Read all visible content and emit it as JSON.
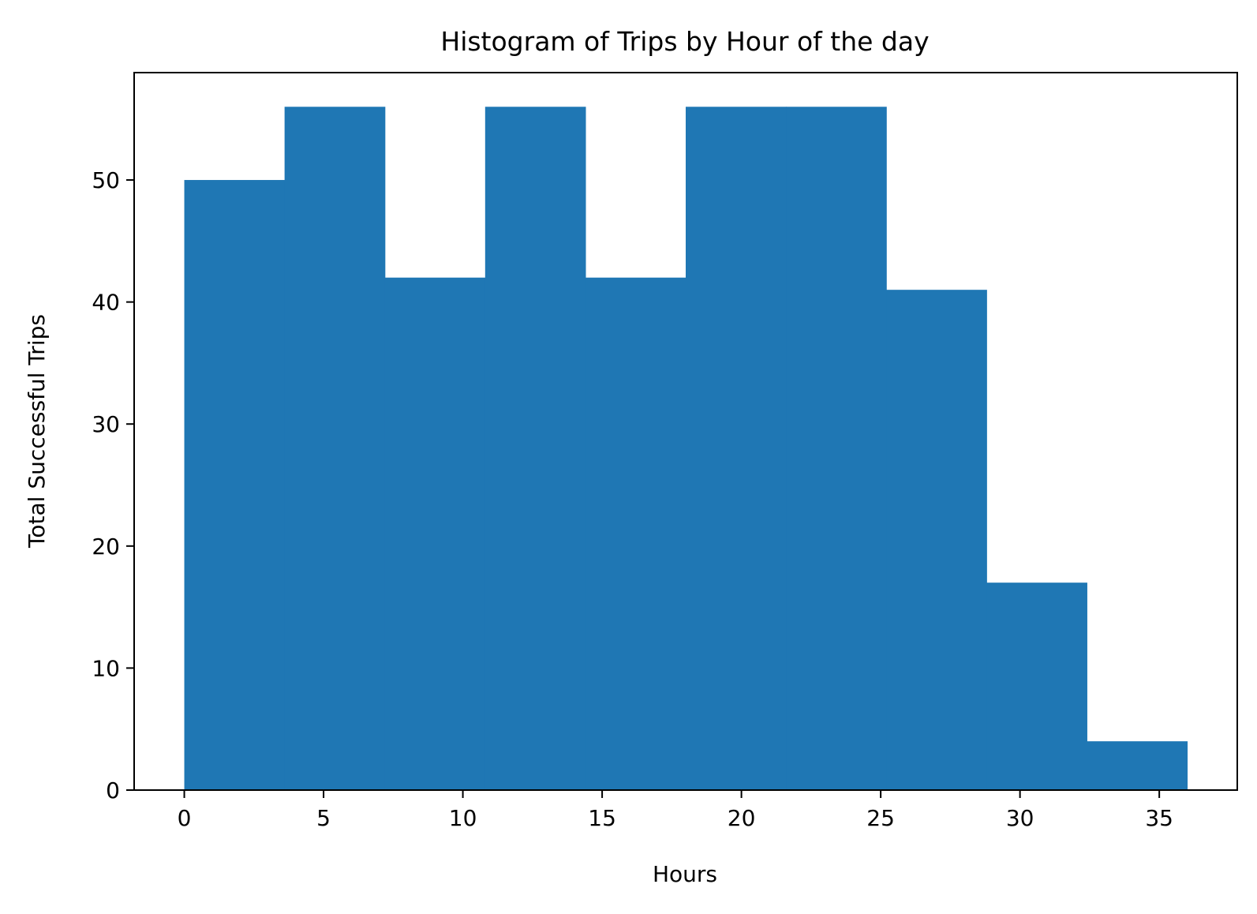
{
  "chart_data": {
    "type": "bar",
    "subtype": "histogram",
    "title": "Histogram of Trips by Hour of the day",
    "xlabel": "Hours",
    "ylabel": "Total Successful Trips",
    "bin_edges": [
      0,
      3.6,
      7.2,
      10.8,
      14.4,
      18,
      21.6,
      25.2,
      28.8,
      32.4,
      36
    ],
    "values": [
      50,
      56,
      42,
      56,
      42,
      56,
      56,
      41,
      17,
      4
    ],
    "xlim": [
      -1.8,
      37.8
    ],
    "ylim": [
      0,
      58.8
    ],
    "xticks": [
      0,
      5,
      10,
      15,
      20,
      25,
      30,
      35
    ],
    "yticks": [
      0,
      10,
      20,
      30,
      40,
      50
    ],
    "bar_color": "#1f77b4",
    "grid": false,
    "legend": "none"
  }
}
